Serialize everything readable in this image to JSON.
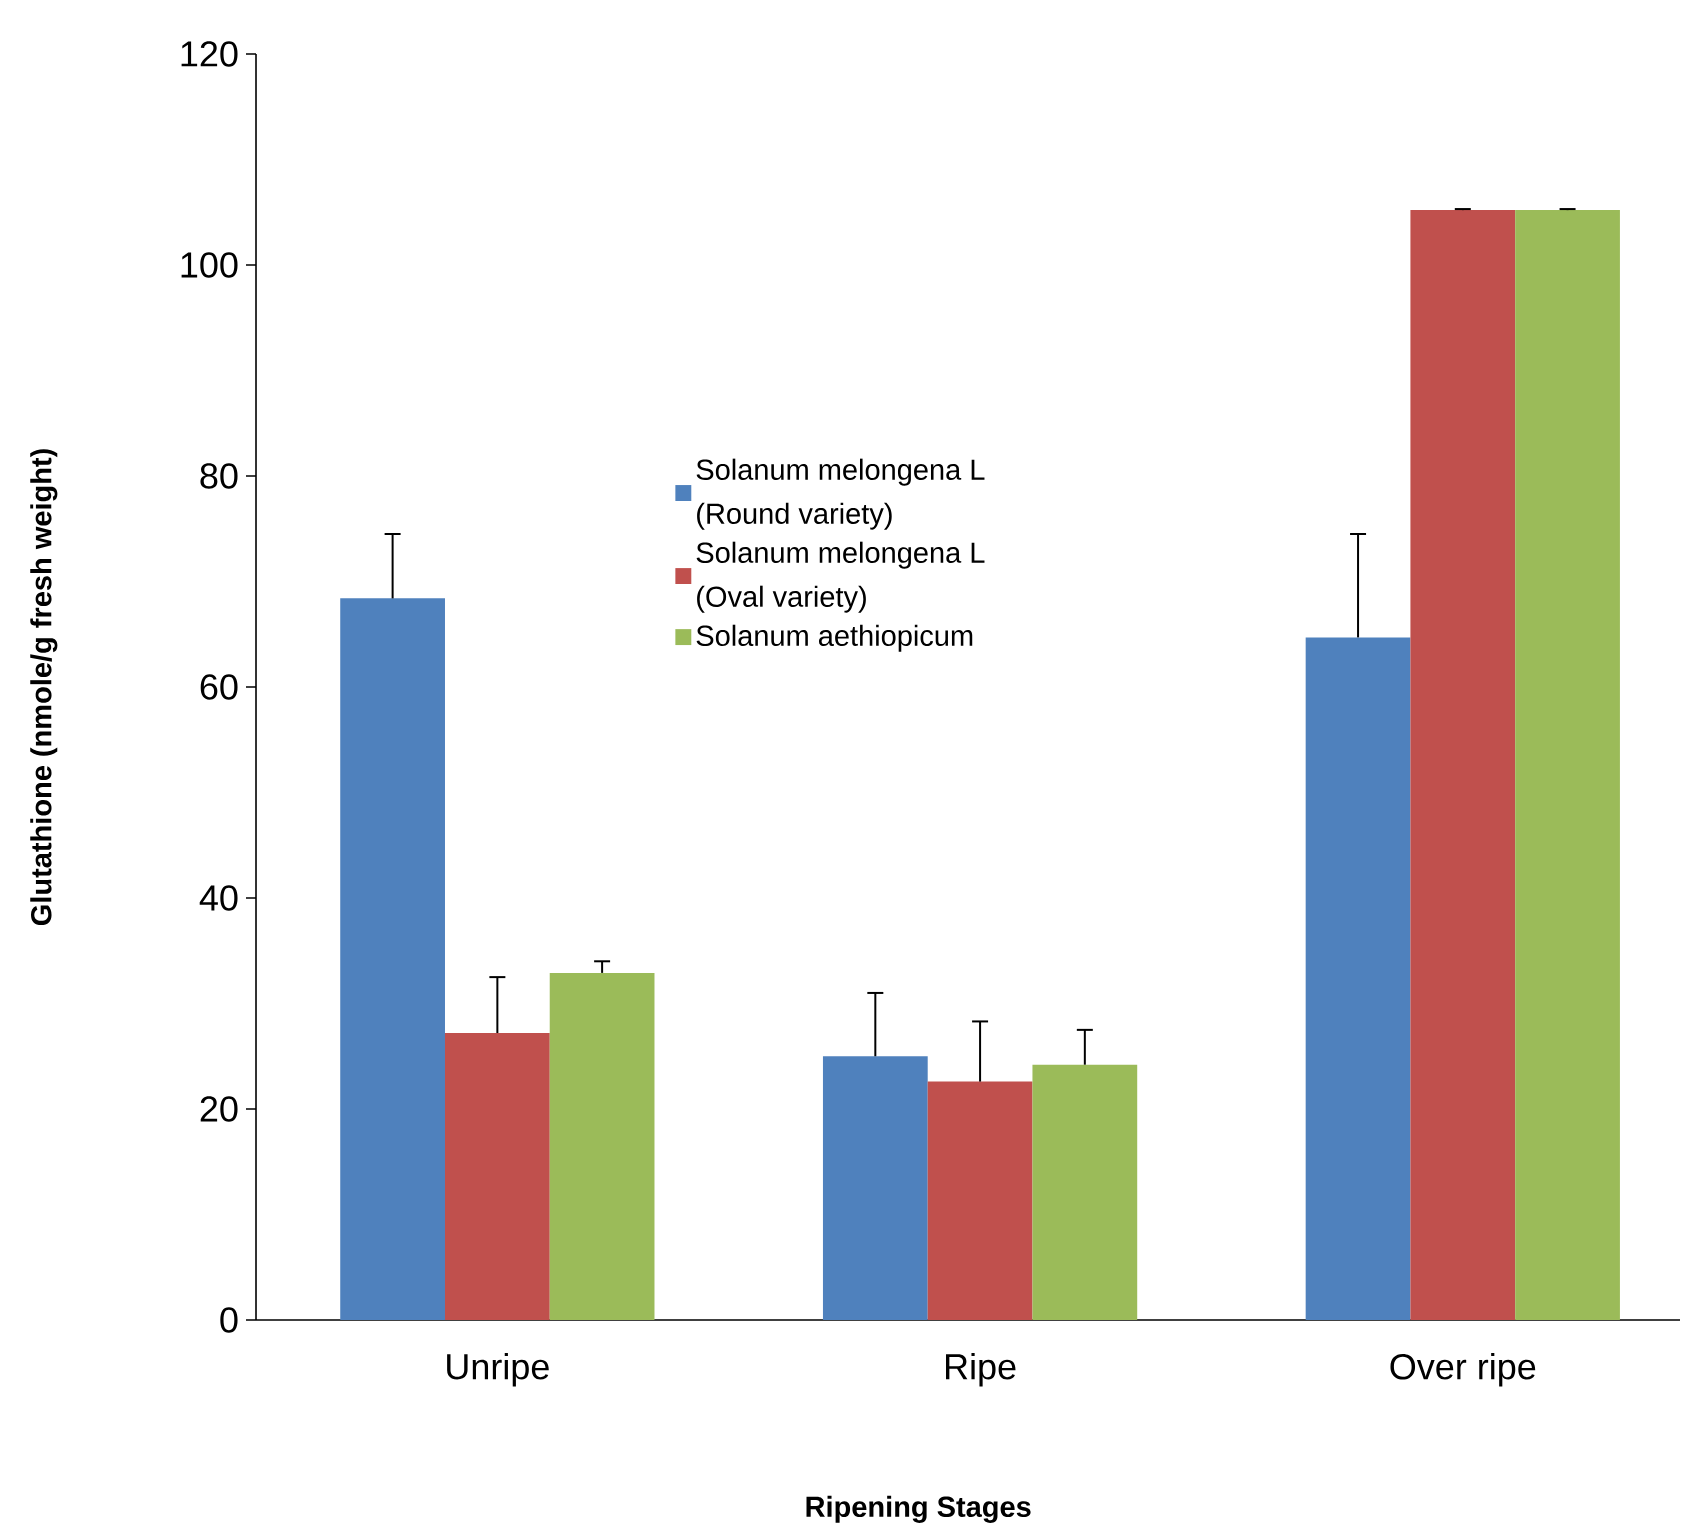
{
  "chart_data": {
    "type": "bar",
    "xlabel": "Ripening Stages",
    "ylabel": "Glutathione (nmole/g fresh weight)",
    "categories": [
      "Unripe",
      "Ripe",
      "Over ripe"
    ],
    "series": [
      {
        "name": "Solanum melongena L (Round variety)",
        "color": "#4f81bd",
        "values": [
          68.4,
          25.0,
          64.7
        ],
        "errors": [
          6.1,
          6.0,
          9.8
        ]
      },
      {
        "name": "Solanum melongena L (Oval variety)",
        "color": "#c0504d",
        "values": [
          27.2,
          22.6,
          105.2
        ],
        "errors": [
          5.3,
          5.7,
          0.1
        ]
      },
      {
        "name": "Solanum aethiopicum",
        "color": "#9bbb59",
        "values": [
          32.9,
          24.2,
          105.2
        ],
        "errors": [
          1.1,
          3.3,
          0.1
        ]
      }
    ],
    "ylim": [
      0,
      120
    ],
    "yticks": [
      0,
      20,
      40,
      60,
      80,
      100,
      120
    ],
    "grid": false,
    "legend": "top"
  }
}
